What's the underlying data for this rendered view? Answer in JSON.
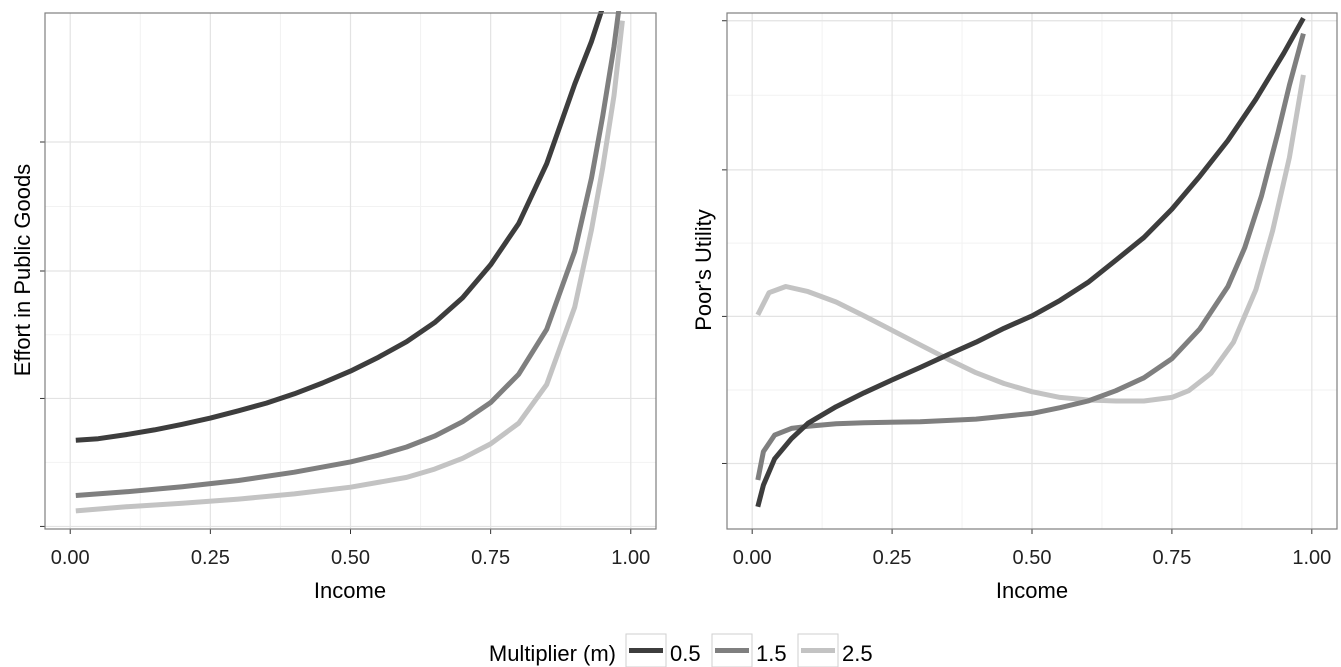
{
  "legend": {
    "title": "Multiplier (m)",
    "position": "bottom"
  },
  "colors": {
    "0.5": "#3d3d3d",
    "1.5": "#7f7f7f",
    "2.5": "#c3c3c3",
    "panel_border": "#7f7f7f",
    "grid_major": "#e3e3e3",
    "grid_minor": "#f2f2f2"
  },
  "chart_data": [
    {
      "type": "line",
      "xlabel": "Income",
      "ylabel": "Effort in Public Goods",
      "xlim": [
        -0.045,
        1.045
      ],
      "ylim": [
        0,
        1
      ],
      "x_ticks": [
        "0.00",
        "0.25",
        "0.50",
        "0.75",
        "1.00"
      ],
      "x_tick_values": [
        0,
        0.25,
        0.5,
        0.75,
        1.0
      ],
      "y_tick_values": [
        0.005,
        0.253,
        0.5,
        0.75
      ],
      "y_tick_labels_shown": false,
      "grid": true,
      "series": [
        {
          "name": "0.5",
          "x": [
            0.01,
            0.05,
            0.1,
            0.15,
            0.2,
            0.25,
            0.3,
            0.35,
            0.4,
            0.45,
            0.5,
            0.55,
            0.6,
            0.65,
            0.7,
            0.75,
            0.8,
            0.85,
            0.9,
            0.93,
            0.96,
            0.985
          ],
          "y": [
            0.172,
            0.175,
            0.183,
            0.192,
            0.203,
            0.215,
            0.229,
            0.244,
            0.262,
            0.283,
            0.306,
            0.333,
            0.363,
            0.4,
            0.448,
            0.512,
            0.592,
            0.708,
            0.862,
            0.945,
            1.045,
            1.135
          ]
        },
        {
          "name": "1.5",
          "x": [
            0.01,
            0.1,
            0.2,
            0.3,
            0.4,
            0.5,
            0.55,
            0.6,
            0.65,
            0.7,
            0.75,
            0.8,
            0.85,
            0.9,
            0.93,
            0.95,
            0.97,
            0.985
          ],
          "y": [
            0.065,
            0.072,
            0.082,
            0.094,
            0.11,
            0.13,
            0.143,
            0.159,
            0.18,
            0.208,
            0.245,
            0.3,
            0.387,
            0.538,
            0.68,
            0.8,
            0.935,
            1.06
          ]
        },
        {
          "name": "2.5",
          "x": [
            0.01,
            0.1,
            0.2,
            0.3,
            0.4,
            0.5,
            0.6,
            0.65,
            0.7,
            0.75,
            0.8,
            0.85,
            0.9,
            0.93,
            0.95,
            0.97,
            0.985
          ],
          "y": [
            0.035,
            0.043,
            0.05,
            0.058,
            0.068,
            0.081,
            0.1,
            0.116,
            0.137,
            0.165,
            0.205,
            0.28,
            0.43,
            0.58,
            0.7,
            0.84,
            0.985
          ]
        }
      ]
    },
    {
      "type": "line",
      "xlabel": "Income",
      "ylabel": "Poor's Utility",
      "xlim": [
        -0.045,
        1.045
      ],
      "ylim": [
        0,
        1
      ],
      "x_ticks": [
        "0.00",
        "0.25",
        "0.50",
        "0.75",
        "1.00"
      ],
      "x_tick_values": [
        0,
        0.25,
        0.5,
        0.75,
        1.0
      ],
      "y_tick_values": [
        0.127,
        0.412,
        0.696,
        0.985
      ],
      "y_tick_labels_shown": false,
      "grid": true,
      "series": [
        {
          "name": "0.5",
          "x": [
            0.01,
            0.02,
            0.04,
            0.07,
            0.1,
            0.15,
            0.2,
            0.25,
            0.3,
            0.35,
            0.4,
            0.45,
            0.5,
            0.55,
            0.6,
            0.65,
            0.7,
            0.75,
            0.8,
            0.85,
            0.9,
            0.95,
            0.985
          ],
          "y": [
            0.043,
            0.085,
            0.136,
            0.175,
            0.205,
            0.237,
            0.264,
            0.289,
            0.313,
            0.338,
            0.362,
            0.389,
            0.413,
            0.443,
            0.478,
            0.521,
            0.565,
            0.62,
            0.684,
            0.753,
            0.833,
            0.922,
            0.99
          ]
        },
        {
          "name": "1.5",
          "x": [
            0.01,
            0.02,
            0.04,
            0.07,
            0.1,
            0.15,
            0.2,
            0.3,
            0.4,
            0.5,
            0.55,
            0.6,
            0.65,
            0.7,
            0.75,
            0.8,
            0.85,
            0.88,
            0.91,
            0.94,
            0.96,
            0.985
          ],
          "y": [
            0.095,
            0.15,
            0.182,
            0.195,
            0.199,
            0.204,
            0.206,
            0.208,
            0.213,
            0.224,
            0.235,
            0.248,
            0.268,
            0.293,
            0.33,
            0.388,
            0.47,
            0.545,
            0.645,
            0.77,
            0.86,
            0.96
          ]
        },
        {
          "name": "2.5",
          "x": [
            0.01,
            0.03,
            0.06,
            0.1,
            0.15,
            0.2,
            0.25,
            0.3,
            0.35,
            0.4,
            0.45,
            0.5,
            0.55,
            0.6,
            0.65,
            0.7,
            0.75,
            0.78,
            0.82,
            0.86,
            0.9,
            0.93,
            0.96,
            0.985
          ],
          "y": [
            0.415,
            0.458,
            0.47,
            0.46,
            0.44,
            0.413,
            0.385,
            0.357,
            0.329,
            0.303,
            0.282,
            0.266,
            0.255,
            0.25,
            0.248,
            0.248,
            0.255,
            0.268,
            0.302,
            0.362,
            0.464,
            0.578,
            0.72,
            0.88
          ]
        }
      ]
    }
  ]
}
